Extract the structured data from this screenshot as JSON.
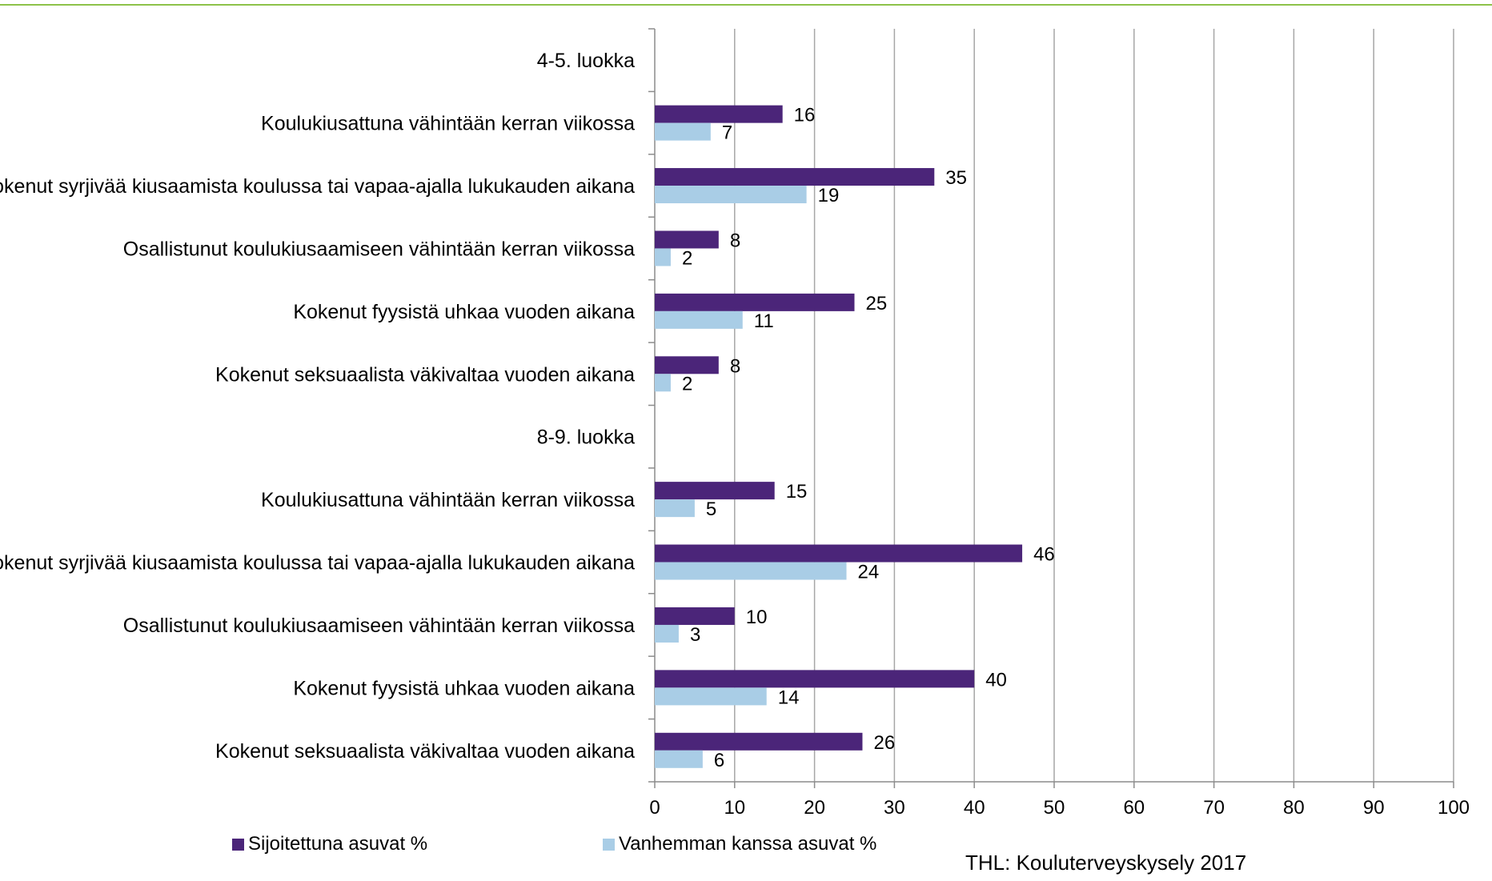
{
  "chart_data": {
    "type": "bar",
    "orientation": "horizontal",
    "categories": [
      "4-5. luokka",
      "Koulukiusattuna vähintään kerran viikossa",
      "Kokenut syrjivää kiusaamista koulussa tai vapaa-ajalla lukukauden aikana",
      "Osallistunut koulukiusaamiseen vähintään kerran viikossa",
      "Kokenut fyysistä uhkaa vuoden aikana",
      "Kokenut seksuaalista väkivaltaa vuoden aikana",
      "8-9. luokka",
      "Koulukiusattuna vähintään kerran viikossa",
      "Kokenut syrjivää kiusaamista koulussa tai vapaa-ajalla lukukauden aikana",
      "Osallistunut koulukiusaamiseen vähintään kerran viikossa",
      "Kokenut fyysistä uhkaa vuoden aikana",
      "Kokenut seksuaalista väkivaltaa vuoden aikana"
    ],
    "series": [
      {
        "name": "Sijoitettuna asuvat %",
        "color": "#4b2579",
        "values": [
          null,
          16,
          35,
          8,
          25,
          8,
          null,
          15,
          46,
          10,
          40,
          26
        ]
      },
      {
        "name": "Vanhemman kanssa asuvat %",
        "color": "#a9cde6",
        "values": [
          null,
          7,
          19,
          2,
          11,
          2,
          null,
          5,
          24,
          3,
          14,
          6
        ]
      }
    ],
    "xlim": [
      0,
      100
    ],
    "x_ticks": [
      "0",
      "10",
      "20",
      "30",
      "40",
      "50",
      "60",
      "70",
      "80",
      "90",
      "100"
    ],
    "grid": true,
    "legend_position": "bottom",
    "title": "",
    "xlabel": "",
    "ylabel": ""
  },
  "source": "THL: Kouluterveyskysely 2017",
  "colors": {
    "top_rule": "#8dc24a",
    "gridline": "#a6a6a6",
    "axis": "#8c8c8c"
  }
}
